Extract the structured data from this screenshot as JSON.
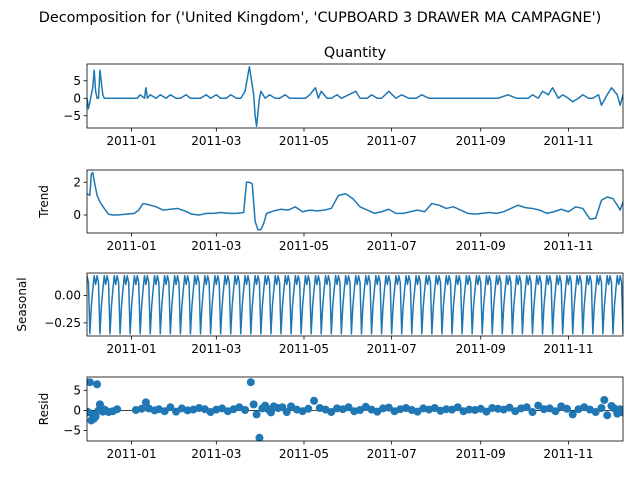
{
  "figure": {
    "suptitle": "Decomposition for ('United Kingdom', 'CUPBOARD 3 DRAWER MA CAMPAGNE')",
    "line_color": "#1f77b4"
  },
  "chart_data": [
    {
      "type": "line",
      "id": "observed",
      "title": "Quantity",
      "ylabel": "",
      "xlim": [
        "2010-12-01",
        "2011-12-09"
      ],
      "ylim": [
        -8.5,
        9.8
      ],
      "yticks": [
        -5,
        0,
        5
      ],
      "ytick_labels": [
        "−5",
        "0",
        "5"
      ],
      "xticks": [
        "2011-01-01",
        "2011-03-01",
        "2011-05-01",
        "2011-07-01",
        "2011-09-01",
        "2011-11-01"
      ],
      "xtick_labels": [
        "2011-01",
        "2011-03",
        "2011-05",
        "2011-07",
        "2011-09",
        "2011-11"
      ],
      "series": [
        {
          "x": [
            "2010-12-01",
            "2010-12-02",
            "2010-12-03",
            "2010-12-05",
            "2010-12-06",
            "2010-12-07",
            "2010-12-08",
            "2010-12-09",
            "2010-12-10",
            "2010-12-12",
            "2010-12-13",
            "2010-12-14",
            "2010-12-15",
            "2010-12-16",
            "2010-12-17",
            "2010-12-20",
            "2010-12-22",
            "2010-12-23",
            "2011-01-05",
            "2011-01-07",
            "2011-01-10",
            "2011-01-11",
            "2011-01-12",
            "2011-01-14",
            "2011-01-18",
            "2011-01-21",
            "2011-01-25",
            "2011-01-28",
            "2011-02-01",
            "2011-02-04",
            "2011-02-08",
            "2011-02-11",
            "2011-02-15",
            "2011-02-18",
            "2011-02-22",
            "2011-02-25",
            "2011-03-01",
            "2011-03-04",
            "2011-03-08",
            "2011-03-11",
            "2011-03-15",
            "2011-03-18",
            "2011-03-21",
            "2011-03-24",
            "2011-03-27",
            "2011-03-28",
            "2011-03-29",
            "2011-03-31",
            "2011-04-01",
            "2011-04-04",
            "2011-04-07",
            "2011-04-11",
            "2011-04-14",
            "2011-04-18",
            "2011-04-21",
            "2011-04-26",
            "2011-05-02",
            "2011-05-05",
            "2011-05-09",
            "2011-05-11",
            "2011-05-13",
            "2011-05-17",
            "2011-05-20",
            "2011-05-24",
            "2011-05-27",
            "2011-06-01",
            "2011-06-06",
            "2011-06-09",
            "2011-06-14",
            "2011-06-17",
            "2011-06-21",
            "2011-06-24",
            "2011-06-29",
            "2011-07-04",
            "2011-07-08",
            "2011-07-13",
            "2011-07-18",
            "2011-07-22",
            "2011-07-27",
            "2011-08-03",
            "2011-08-09",
            "2011-08-16",
            "2011-08-23",
            "2011-08-30",
            "2011-09-06",
            "2011-09-13",
            "2011-09-20",
            "2011-09-26",
            "2011-09-30",
            "2011-10-04",
            "2011-10-07",
            "2011-10-11",
            "2011-10-14",
            "2011-10-18",
            "2011-10-21",
            "2011-10-25",
            "2011-10-28",
            "2011-11-01",
            "2011-11-04",
            "2011-11-08",
            "2011-11-11",
            "2011-11-15",
            "2011-11-18",
            "2011-11-22",
            "2011-11-24",
            "2011-11-28",
            "2011-12-01",
            "2011-12-05",
            "2011-12-07",
            "2011-12-09"
          ],
          "y": [
            0,
            -3,
            -1,
            3,
            8,
            2,
            0,
            0,
            8,
            1,
            0,
            0,
            0,
            0,
            0,
            0,
            0,
            0,
            0,
            1,
            0,
            3,
            0,
            1,
            0,
            1,
            0,
            1,
            0,
            0,
            1,
            0,
            0,
            0,
            1,
            0,
            1,
            0,
            0,
            1,
            0,
            0,
            2,
            9,
            1,
            -5,
            -8,
            0,
            2,
            0,
            1,
            0,
            0,
            1,
            0,
            0,
            0,
            1,
            3,
            0,
            2,
            0,
            0,
            1,
            0,
            1,
            2,
            0,
            0,
            1,
            0,
            0,
            2,
            0,
            1,
            0,
            0,
            1,
            0,
            0,
            0,
            0,
            0,
            0,
            0,
            0,
            1,
            0,
            0,
            0,
            1,
            0,
            2,
            1,
            3,
            0,
            1,
            0,
            -1,
            0,
            1,
            0,
            0,
            1,
            -2,
            1,
            3,
            1,
            -2,
            1
          ]
        }
      ]
    },
    {
      "type": "line",
      "id": "trend",
      "title": "",
      "ylabel": "Trend",
      "xlim": [
        "2010-12-01",
        "2011-12-09"
      ],
      "ylim": [
        -1.1,
        2.75
      ],
      "yticks": [
        0,
        2
      ],
      "ytick_labels": [
        "0",
        "2"
      ],
      "xticks": [
        "2011-01-01",
        "2011-03-01",
        "2011-05-01",
        "2011-07-01",
        "2011-09-01",
        "2011-11-01"
      ],
      "xtick_labels": [
        "2011-01",
        "2011-03",
        "2011-05",
        "2011-07",
        "2011-09",
        "2011-11"
      ],
      "series": [
        {
          "x": [
            "2010-12-01",
            "2010-12-03",
            "2010-12-04",
            "2010-12-05",
            "2010-12-06",
            "2010-12-08",
            "2010-12-10",
            "2010-12-13",
            "2010-12-16",
            "2010-12-19",
            "2010-12-22",
            "2011-01-03",
            "2011-01-06",
            "2011-01-09",
            "2011-01-12",
            "2011-01-18",
            "2011-01-23",
            "2011-01-28",
            "2011-02-02",
            "2011-02-07",
            "2011-02-12",
            "2011-02-17",
            "2011-02-22",
            "2011-02-27",
            "2011-03-04",
            "2011-03-10",
            "2011-03-15",
            "2011-03-20",
            "2011-03-22",
            "2011-03-24",
            "2011-03-26",
            "2011-03-28",
            "2011-03-30",
            "2011-04-01",
            "2011-04-03",
            "2011-04-05",
            "2011-04-10",
            "2011-04-15",
            "2011-04-20",
            "2011-04-25",
            "2011-04-30",
            "2011-05-05",
            "2011-05-10",
            "2011-05-15",
            "2011-05-20",
            "2011-05-25",
            "2011-05-30",
            "2011-06-04",
            "2011-06-09",
            "2011-06-14",
            "2011-06-19",
            "2011-06-24",
            "2011-06-29",
            "2011-07-04",
            "2011-07-09",
            "2011-07-14",
            "2011-07-19",
            "2011-07-24",
            "2011-07-29",
            "2011-08-03",
            "2011-08-08",
            "2011-08-13",
            "2011-08-18",
            "2011-08-23",
            "2011-08-28",
            "2011-09-02",
            "2011-09-07",
            "2011-09-12",
            "2011-09-17",
            "2011-09-22",
            "2011-09-27",
            "2011-10-02",
            "2011-10-07",
            "2011-10-12",
            "2011-10-17",
            "2011-10-22",
            "2011-10-27",
            "2011-11-01",
            "2011-11-06",
            "2011-11-11",
            "2011-11-16",
            "2011-11-20",
            "2011-11-24",
            "2011-11-28",
            "2011-12-02",
            "2011-12-05",
            "2011-12-07",
            "2011-12-09"
          ],
          "y": [
            1.3,
            1.2,
            2.5,
            2.6,
            2.1,
            1.2,
            0.8,
            0.4,
            0.05,
            0.0,
            0.0,
            0.1,
            0.3,
            0.7,
            0.65,
            0.5,
            0.3,
            0.35,
            0.4,
            0.25,
            0.05,
            0.0,
            0.1,
            0.1,
            0.15,
            0.1,
            0.1,
            0.15,
            2.0,
            2.0,
            1.9,
            -0.4,
            -0.9,
            -0.9,
            -0.5,
            0.1,
            0.25,
            0.35,
            0.3,
            0.5,
            0.2,
            0.3,
            0.25,
            0.3,
            0.4,
            1.2,
            1.3,
            1.0,
            0.5,
            0.3,
            0.1,
            0.2,
            0.35,
            0.1,
            0.1,
            0.2,
            0.3,
            0.2,
            0.7,
            0.6,
            0.4,
            0.5,
            0.3,
            0.1,
            0.05,
            0.1,
            0.15,
            0.1,
            0.2,
            0.4,
            0.6,
            0.45,
            0.4,
            0.3,
            0.1,
            0.2,
            0.35,
            0.2,
            0.5,
            0.4,
            -0.25,
            -0.2,
            0.9,
            1.1,
            1.0,
            0.6,
            0.3,
            0.8
          ]
        }
      ]
    },
    {
      "type": "line",
      "id": "seasonal",
      "title": "",
      "ylabel": "Seasonal",
      "xlim": [
        "2010-12-01",
        "2011-12-09"
      ],
      "ylim": [
        -0.37,
        0.205
      ],
      "yticks": [
        -0.25,
        0.0
      ],
      "ytick_labels": [
        "−0.25",
        "0.00"
      ],
      "xticks": [
        "2011-01-01",
        "2011-03-01",
        "2011-05-01",
        "2011-07-01",
        "2011-09-01",
        "2011-11-01"
      ],
      "xtick_labels": [
        "2011-01",
        "2011-03",
        "2011-05",
        "2011-07",
        "2011-09",
        "2011-11"
      ],
      "series": [
        {
          "period_days": 7,
          "weekly_pattern": [
            0.18,
            0.12,
            -0.35,
            -0.1,
            0.05,
            0.18,
            0.1
          ],
          "start": "2010-12-01",
          "end": "2011-12-09"
        }
      ]
    },
    {
      "type": "scatter",
      "id": "resid",
      "title": "",
      "ylabel": "Resid",
      "xlim": [
        "2010-12-01",
        "2011-12-09"
      ],
      "ylim": [
        -7.6,
        8.3
      ],
      "yticks": [
        -5,
        0,
        5
      ],
      "ytick_labels": [
        "−5",
        "0",
        "5"
      ],
      "xticks": [
        "2011-01-01",
        "2011-03-01",
        "2011-05-01",
        "2011-07-01",
        "2011-09-01",
        "2011-11-01"
      ],
      "xtick_labels": [
        "2011-01",
        "2011-03",
        "2011-05",
        "2011-07",
        "2011-09",
        "2011-11"
      ],
      "series": [
        {
          "x": [
            "2010-12-01",
            "2010-12-02",
            "2010-12-03",
            "2010-12-04",
            "2010-12-05",
            "2010-12-06",
            "2010-12-07",
            "2010-12-08",
            "2010-12-09",
            "2010-12-10",
            "2010-12-12",
            "2010-12-13",
            "2010-12-14",
            "2010-12-16",
            "2010-12-19",
            "2010-12-22",
            "2011-01-04",
            "2011-01-08",
            "2011-01-11",
            "2011-01-13",
            "2011-01-17",
            "2011-01-20",
            "2011-01-24",
            "2011-01-28",
            "2011-02-01",
            "2011-02-05",
            "2011-02-09",
            "2011-02-13",
            "2011-02-17",
            "2011-02-21",
            "2011-02-25",
            "2011-03-01",
            "2011-03-05",
            "2011-03-09",
            "2011-03-13",
            "2011-03-17",
            "2011-03-21",
            "2011-03-25",
            "2011-03-27",
            "2011-03-29",
            "2011-03-31",
            "2011-04-02",
            "2011-04-04",
            "2011-04-06",
            "2011-04-08",
            "2011-04-10",
            "2011-04-13",
            "2011-04-16",
            "2011-04-19",
            "2011-04-22",
            "2011-04-26",
            "2011-04-30",
            "2011-05-04",
            "2011-05-08",
            "2011-05-12",
            "2011-05-16",
            "2011-05-20",
            "2011-05-24",
            "2011-05-28",
            "2011-06-01",
            "2011-06-05",
            "2011-06-09",
            "2011-06-13",
            "2011-06-17",
            "2011-06-21",
            "2011-06-25",
            "2011-06-29",
            "2011-07-03",
            "2011-07-07",
            "2011-07-11",
            "2011-07-15",
            "2011-07-19",
            "2011-07-23",
            "2011-07-27",
            "2011-07-31",
            "2011-08-04",
            "2011-08-08",
            "2011-08-12",
            "2011-08-16",
            "2011-08-20",
            "2011-08-24",
            "2011-08-28",
            "2011-09-01",
            "2011-09-05",
            "2011-09-09",
            "2011-09-13",
            "2011-09-17",
            "2011-09-21",
            "2011-09-25",
            "2011-09-29",
            "2011-10-03",
            "2011-10-07",
            "2011-10-11",
            "2011-10-15",
            "2011-10-19",
            "2011-10-23",
            "2011-10-27",
            "2011-10-31",
            "2011-11-04",
            "2011-11-08",
            "2011-11-12",
            "2011-11-16",
            "2011-11-20",
            "2011-11-24",
            "2011-11-26",
            "2011-11-28",
            "2011-12-01",
            "2011-12-03",
            "2011-12-05",
            "2011-12-07",
            "2011-12-09"
          ],
          "y": [
            -0.3,
            -0.5,
            7,
            -2.5,
            -1,
            -2,
            -1.5,
            6.5,
            0,
            1.5,
            -0.3,
            0.2,
            0,
            -0.4,
            -0.2,
            0.3,
            0.1,
            0.4,
            2,
            0.5,
            0,
            0.3,
            -0.2,
            0.8,
            -0.3,
            0.5,
            0,
            0.2,
            0.6,
            0.3,
            -0.4,
            0.2,
            0.5,
            -0.2,
            0.3,
            0.8,
            0.1,
            7,
            1.5,
            -1,
            -6.8,
            0.5,
            1.2,
            0.3,
            -0.5,
            1,
            0.6,
            0.8,
            -0.4,
            1,
            0.2,
            -0.2,
            0.4,
            2.4,
            0.6,
            0.2,
            -0.4,
            0.5,
            0.3,
            0.8,
            -0.2,
            0.1,
            0.9,
            0.2,
            -0.3,
            0.5,
            0.7,
            -0.2,
            0.3,
            0.6,
            0.1,
            -0.3,
            0.5,
            0.2,
            0.6,
            -0.1,
            0.3,
            0.2,
            0.8,
            -0.2,
            0.2,
            0.1,
            0.4,
            -0.3,
            0.6,
            0.4,
            0.2,
            0.7,
            -0.2,
            0.5,
            0.8,
            -0.4,
            1.2,
            0.3,
            0.5,
            -0.2,
            1,
            0.4,
            -1,
            0.3,
            0.8,
            0.2,
            -0.4,
            0.6,
            2.6,
            -1.2,
            1.1,
            0.5,
            -0.8,
            0.3,
            -0.5
          ]
        }
      ]
    }
  ]
}
